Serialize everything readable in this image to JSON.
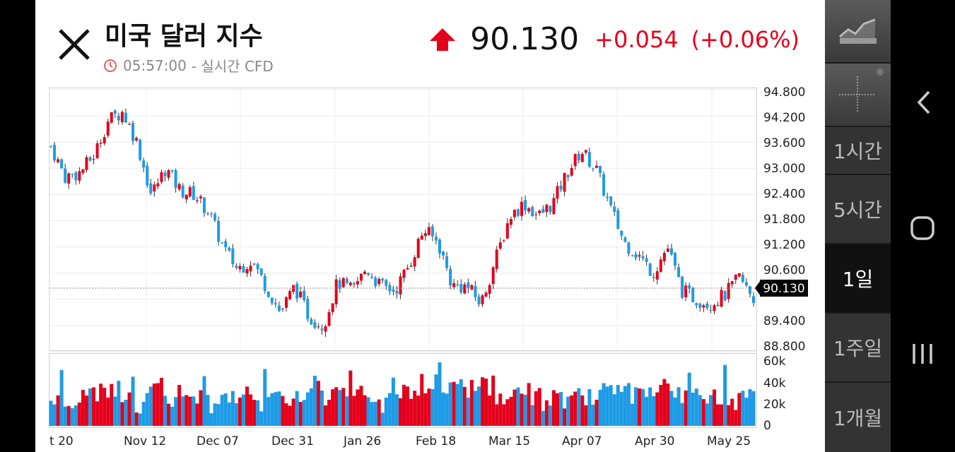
{
  "header": {
    "title": "미국 달러 지수",
    "time": "05:57:00",
    "realtime_label": "- 실시간 CFD",
    "price": "90.130",
    "change": "+0.054",
    "change_pct": "(+0.06%)"
  },
  "colors": {
    "up": "#e4001b",
    "down": "#1e9be6",
    "price_badge_bg": "#000000"
  },
  "icons": {
    "close": "close-icon",
    "clock": "clock-icon",
    "up_arrow": "up-arrow-icon",
    "line_chart": "line-chart-icon",
    "crosshair": "crosshair-icon"
  },
  "right_panel": {
    "timeframes": [
      "1시간",
      "5시간",
      "1일",
      "1주일",
      "1개월"
    ],
    "selected": "1일"
  },
  "nav": {
    "back": "back-icon",
    "home": "home-icon",
    "recents": "recents-icon"
  },
  "chart_data": {
    "type": "candlestick",
    "current_price": "90.130",
    "price_axis": {
      "ticks": [
        "94.800",
        "94.200",
        "93.600",
        "93.000",
        "92.400",
        "91.800",
        "91.200",
        "90.600",
        "89.400",
        "88.800"
      ],
      "range": [
        88.8,
        94.8
      ]
    },
    "volume_axis": {
      "ticks": [
        "60k",
        "40k",
        "20k",
        "0"
      ],
      "range": [
        0,
        60000
      ]
    },
    "x_labels": [
      "t 20",
      "Nov 12",
      "Dec 07",
      "Dec 31",
      "Jan 26",
      "Feb 18",
      "Mar 15",
      "Apr 07",
      "Apr 30",
      "May 25"
    ],
    "close_path": [
      93.5,
      92.8,
      92.9,
      93.3,
      94.1,
      94.3,
      93.6,
      92.4,
      93.0,
      92.5,
      92.4,
      92.0,
      91.2,
      90.7,
      90.9,
      90.3,
      89.7,
      90.3,
      89.6,
      89.4,
      90.4,
      90.2,
      90.7,
      90.3,
      90.2,
      90.8,
      91.6,
      91.3,
      90.3,
      90.3,
      89.9,
      90.9,
      91.9,
      92.2,
      91.9,
      92.2,
      92.9,
      93.4,
      93.0,
      92.1,
      91.3,
      91.0,
      90.6,
      91.2,
      90.2,
      90.0,
      89.9,
      90.1,
      90.5,
      90.0
    ],
    "volume_levels": [
      25,
      20,
      30,
      27,
      35,
      32,
      22,
      37,
      25,
      30,
      27,
      20,
      32,
      27,
      22,
      35,
      30,
      27,
      35,
      30,
      32,
      27,
      32,
      22,
      35,
      32,
      37,
      42,
      35,
      37,
      42,
      30,
      27,
      32,
      25,
      30,
      22,
      27,
      25,
      32,
      30,
      25,
      28,
      34,
      30,
      27,
      32,
      30,
      22,
      30
    ]
  }
}
